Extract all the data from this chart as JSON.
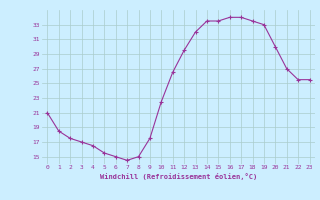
{
  "x": [
    0,
    1,
    2,
    3,
    4,
    5,
    6,
    7,
    8,
    9,
    10,
    11,
    12,
    13,
    14,
    15,
    16,
    17,
    18,
    19,
    20,
    21,
    22,
    23
  ],
  "y": [
    21,
    18.5,
    17.5,
    17,
    16.5,
    15.5,
    15,
    14.5,
    15,
    17.5,
    22.5,
    26.5,
    29.5,
    32,
    33.5,
    33.5,
    34,
    34,
    33.5,
    33,
    30,
    27,
    25.5,
    25.5
  ],
  "line_color": "#993399",
  "marker_color": "#993399",
  "bg_color": "#cceeff",
  "grid_color": "#aacccc",
  "axis_color": "#993399",
  "xlabel": "Windchill (Refroidissement éolien,°C)",
  "yticks": [
    15,
    17,
    19,
    21,
    23,
    25,
    27,
    29,
    31,
    33
  ],
  "xticks": [
    0,
    1,
    2,
    3,
    4,
    5,
    6,
    7,
    8,
    9,
    10,
    11,
    12,
    13,
    14,
    15,
    16,
    17,
    18,
    19,
    20,
    21,
    22,
    23
  ],
  "ylim": [
    14,
    35
  ],
  "xlim": [
    -0.5,
    23.5
  ]
}
